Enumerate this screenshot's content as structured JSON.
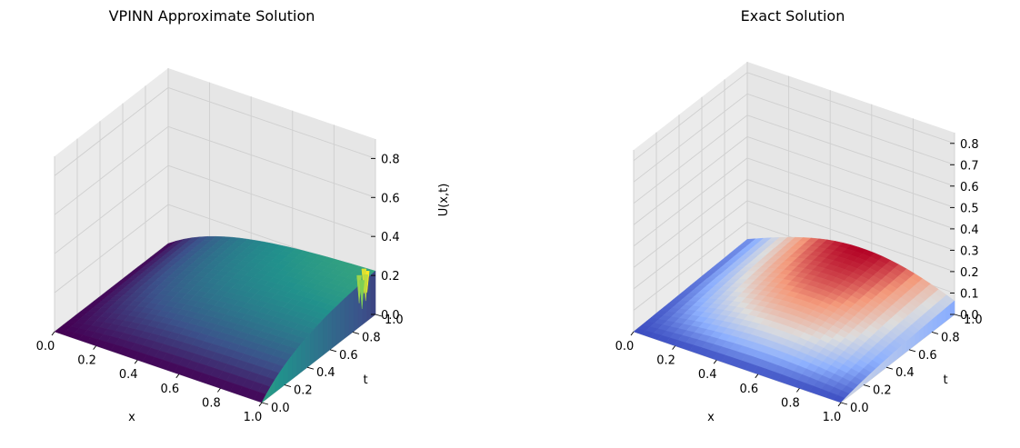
{
  "chart_data": [
    {
      "type": "surface",
      "title": "VPINN Approximate Solution",
      "xlabel": "x",
      "ylabel": "t",
      "zlabel": "U(x,t)",
      "xlim": [
        0.0,
        1.0
      ],
      "ylim": [
        0.0,
        1.0
      ],
      "zlim": [
        0.0,
        0.9
      ],
      "x_ticks": [
        "0.0",
        "0.2",
        "0.4",
        "0.6",
        "0.8",
        "1.0"
      ],
      "y_ticks": [
        "0.0",
        "0.2",
        "0.4",
        "0.6",
        "0.8",
        "1.0"
      ],
      "z_ticks": [
        "0.0",
        "0.2",
        "0.4",
        "0.6",
        "0.8"
      ],
      "colormap": "viridis",
      "grid": true,
      "surface_note": "approximate solution with oscillations near x = 1, t = 1"
    },
    {
      "type": "surface",
      "title": "Exact Solution",
      "xlabel": "x",
      "ylabel": "t",
      "zlabel": "",
      "xlim": [
        0.0,
        1.0
      ],
      "ylim": [
        0.0,
        1.0
      ],
      "zlim": [
        0.0,
        0.85
      ],
      "x_ticks": [
        "0.0",
        "0.2",
        "0.4",
        "0.6",
        "0.8",
        "1.0"
      ],
      "y_ticks": [
        "0.0",
        "0.2",
        "0.4",
        "0.6",
        "0.8",
        "1.0"
      ],
      "z_ticks": [
        "0.0",
        "0.1",
        "0.2",
        "0.3",
        "0.4",
        "0.5",
        "0.6",
        "0.7",
        "0.8"
      ],
      "colormap": "coolwarm",
      "grid": true
    }
  ]
}
